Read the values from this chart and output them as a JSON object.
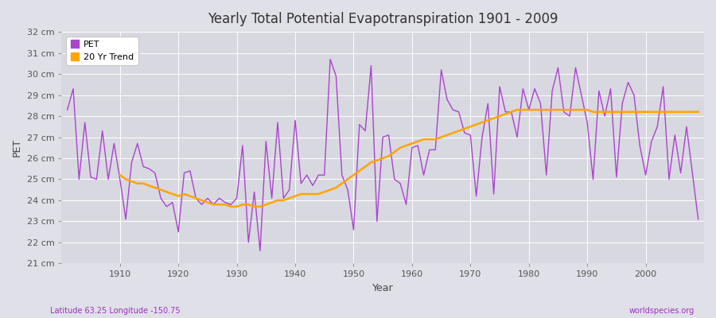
{
  "title": "Yearly Total Potential Evapotranspiration 1901 - 2009",
  "xlabel": "Year",
  "ylabel": "PET",
  "bottom_left_label": "Latitude 63.25 Longitude -150.75",
  "bottom_right_label": "worldspecies.org",
  "pet_color": "#AA44CC",
  "trend_color": "#FFA500",
  "fig_bg_color": "#E0E0E8",
  "plot_bg_color": "#D8D8E0",
  "grid_color": "#FFFFFF",
  "ylim": [
    21,
    32
  ],
  "yticks": [
    21,
    22,
    23,
    24,
    25,
    26,
    27,
    28,
    29,
    30,
    31,
    32
  ],
  "xlim": [
    1900,
    2010
  ],
  "xticks": [
    1910,
    1920,
    1930,
    1940,
    1950,
    1960,
    1970,
    1980,
    1990,
    2000
  ],
  "years": [
    1901,
    1902,
    1903,
    1904,
    1905,
    1906,
    1907,
    1908,
    1909,
    1910,
    1911,
    1912,
    1913,
    1914,
    1915,
    1916,
    1917,
    1918,
    1919,
    1920,
    1921,
    1922,
    1923,
    1924,
    1925,
    1926,
    1927,
    1928,
    1929,
    1930,
    1931,
    1932,
    1933,
    1934,
    1935,
    1936,
    1937,
    1938,
    1939,
    1940,
    1941,
    1942,
    1943,
    1944,
    1945,
    1946,
    1947,
    1948,
    1949,
    1950,
    1951,
    1952,
    1953,
    1954,
    1955,
    1956,
    1957,
    1958,
    1959,
    1960,
    1961,
    1962,
    1963,
    1964,
    1965,
    1966,
    1967,
    1968,
    1969,
    1970,
    1971,
    1972,
    1973,
    1974,
    1975,
    1976,
    1977,
    1978,
    1979,
    1980,
    1981,
    1982,
    1983,
    1984,
    1985,
    1986,
    1987,
    1988,
    1989,
    1990,
    1991,
    1992,
    1993,
    1994,
    1995,
    1996,
    1997,
    1998,
    1999,
    2000,
    2001,
    2002,
    2003,
    2004,
    2005,
    2006,
    2007,
    2008,
    2009
  ],
  "pet_values": [
    28.3,
    29.3,
    25.0,
    27.7,
    25.1,
    25.0,
    27.3,
    25.0,
    26.7,
    25.0,
    23.1,
    25.8,
    26.7,
    25.6,
    25.5,
    25.3,
    24.1,
    23.7,
    23.9,
    22.5,
    25.3,
    25.4,
    24.1,
    23.8,
    24.1,
    23.8,
    24.1,
    23.9,
    23.8,
    24.1,
    26.6,
    22.0,
    24.4,
    21.6,
    26.8,
    24.1,
    27.7,
    24.1,
    24.5,
    27.8,
    24.8,
    25.2,
    24.7,
    25.2,
    25.2,
    30.7,
    29.9,
    25.2,
    24.5,
    22.6,
    27.6,
    27.3,
    30.4,
    23.0,
    27.0,
    27.1,
    25.0,
    24.8,
    23.8,
    26.5,
    26.6,
    25.2,
    26.4,
    26.4,
    30.2,
    28.8,
    28.3,
    28.2,
    27.2,
    27.1,
    24.2,
    27.0,
    28.6,
    24.3,
    29.4,
    28.2,
    28.2,
    27.0,
    29.3,
    28.3,
    29.3,
    28.6,
    25.2,
    29.2,
    30.3,
    28.2,
    28.0,
    30.3,
    29.0,
    27.7,
    25.0,
    29.2,
    28.0,
    29.3,
    25.1,
    28.6,
    29.6,
    29.0,
    26.6,
    25.2,
    26.8,
    27.5,
    29.4,
    25.0,
    27.1,
    25.3,
    27.5,
    25.3,
    23.1
  ],
  "trend_values": [
    null,
    null,
    null,
    null,
    null,
    null,
    null,
    null,
    null,
    25.2,
    25.0,
    24.9,
    24.8,
    24.8,
    24.7,
    24.6,
    24.5,
    24.4,
    24.3,
    24.2,
    24.3,
    24.2,
    24.1,
    24.0,
    23.9,
    23.8,
    23.8,
    23.8,
    23.7,
    23.7,
    23.8,
    23.8,
    23.7,
    23.7,
    23.8,
    23.9,
    24.0,
    24.0,
    24.1,
    24.2,
    24.3,
    24.3,
    24.3,
    24.3,
    24.4,
    24.5,
    24.6,
    24.8,
    25.0,
    25.2,
    25.4,
    25.6,
    25.8,
    25.9,
    26.0,
    26.1,
    26.3,
    26.5,
    26.6,
    26.7,
    26.8,
    26.9,
    26.9,
    26.9,
    27.0,
    27.1,
    27.2,
    27.3,
    27.4,
    27.5,
    27.6,
    27.7,
    27.8,
    27.9,
    28.0,
    28.1,
    28.2,
    28.3,
    28.3,
    28.3,
    28.3,
    28.3,
    28.3,
    28.3,
    28.3,
    28.3,
    28.3,
    28.3,
    28.3,
    28.3,
    28.2,
    28.2,
    28.2,
    28.2,
    28.2,
    28.2,
    28.2,
    28.2,
    28.2,
    28.2,
    28.2,
    28.2,
    28.2,
    28.2,
    28.2,
    28.2,
    28.2,
    28.2,
    28.2
  ]
}
